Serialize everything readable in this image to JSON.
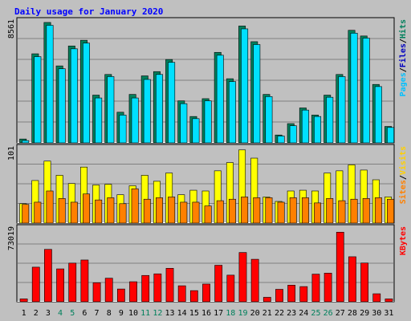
{
  "title": "Daily usage for January 2020",
  "colors": {
    "background": "#C0C0C0",
    "title": "#0000FF",
    "grid": "#808080",
    "hits": "#00805C",
    "files": "#00E0FF",
    "pages": "#00C0FF",
    "sites": "#FF8000",
    "visits": "#FFFF00",
    "kbytes": "#FF0000",
    "weekend": "#00805C",
    "weekday": "#000000",
    "slash": "#000000"
  },
  "panels": {
    "top": {
      "max_label": "8561",
      "legend": [
        {
          "text": "Pages",
          "color": "#00C0FF"
        },
        {
          "text": "/",
          "color": "#000000"
        },
        {
          "text": "Files",
          "color": "#0000C0"
        },
        {
          "text": "/",
          "color": "#000000"
        },
        {
          "text": "Hits",
          "color": "#00805C"
        }
      ]
    },
    "mid": {
      "max_label": "101",
      "legend": [
        {
          "text": "Sites",
          "color": "#FF8000"
        },
        {
          "text": "/",
          "color": "#000000"
        },
        {
          "text": "Visits",
          "color": "#FFD000"
        }
      ]
    },
    "bot": {
      "max_label": "73019",
      "legend": [
        {
          "text": "KBytes",
          "color": "#FF0000"
        }
      ]
    }
  },
  "chart_data": {
    "type": "bar",
    "title": "Daily usage for January 2020",
    "categories": [
      "1",
      "2",
      "3",
      "4",
      "5",
      "6",
      "7",
      "8",
      "9",
      "10",
      "11",
      "12",
      "13",
      "14",
      "15",
      "16",
      "17",
      "18",
      "19",
      "20",
      "21",
      "22",
      "23",
      "24",
      "25",
      "26",
      "27",
      "28",
      "29",
      "30",
      "31"
    ],
    "weekend_days": [
      "4",
      "5",
      "11",
      "12",
      "18",
      "19",
      "25",
      "26"
    ],
    "panels": [
      {
        "name": "top",
        "ymax": 8561,
        "series": [
          {
            "name": "Hits",
            "values": [
              270,
              6250,
              8450,
              5400,
              6800,
              7200,
              3350,
              4800,
              2150,
              3400,
              4700,
              5000,
              5850,
              2950,
              1850,
              3100,
              6350,
              4500,
              8200,
              7100,
              3400,
              550,
              1350,
              2450,
              1950,
              3350,
              4800,
              7900,
              7500,
              4100,
              1150
            ]
          },
          {
            "name": "Files",
            "values": [
              160,
              6050,
              8250,
              5200,
              6600,
              7000,
              3150,
              4650,
              1950,
              3150,
              4450,
              4800,
              5650,
              2750,
              1700,
              2950,
              6150,
              4300,
              8000,
              6900,
              3250,
              480,
              1200,
              2300,
              1850,
              3200,
              4650,
              7700,
              7350,
              3950,
              1080
            ]
          }
        ]
      },
      {
        "name": "mid",
        "ymax": 101,
        "series": [
          {
            "name": "Visits",
            "values": [
              26,
              57,
              83,
              64,
              53,
              75,
              51,
              52,
              38,
              50,
              64,
              56,
              67,
              38,
              44,
              43,
              70,
              81,
              98,
              87,
              35,
              29,
              43,
              44,
              43,
              67,
              70,
              78,
              71,
              58,
              35
            ]
          },
          {
            "name": "Sites",
            "values": [
              25,
              28,
              43,
              33,
              28,
              39,
              31,
              34,
              26,
              46,
              32,
              34,
              35,
              28,
              28,
              23,
              30,
              32,
              35,
              34,
              34,
              28,
              34,
              34,
              27,
              33,
              30,
              32,
              33,
              34,
              32
            ]
          }
        ]
      },
      {
        "name": "bot",
        "ymax": 73019,
        "series": [
          {
            "name": "KBytes",
            "values": [
              2800,
              34200,
              51800,
              32500,
              38200,
              41300,
              18800,
              23300,
              12600,
              19800,
              26000,
              27600,
              33100,
              15800,
              11000,
              17500,
              36100,
              26300,
              48700,
              42000,
              4400,
              12300,
              16400,
              15000,
              27300,
              28300,
              68800,
              44500,
              38300,
              7900,
              2800
            ]
          }
        ]
      }
    ]
  }
}
